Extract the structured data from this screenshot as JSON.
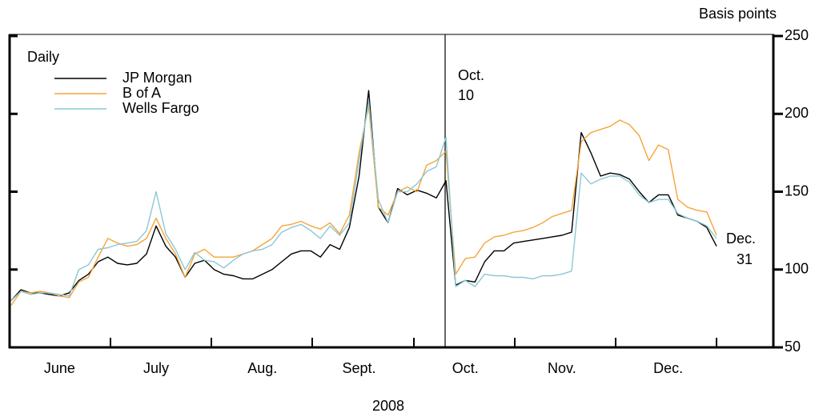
{
  "chart_data": {
    "type": "line",
    "y_axis_label": "Basis points",
    "x_axis_label": "2008",
    "legend_title": "Daily",
    "annotations": [
      {
        "text": [
          "Oct.",
          "10"
        ]
      },
      {
        "text": [
          "Dec.",
          "31"
        ]
      }
    ],
    "categories": [
      null,
      null,
      null,
      null,
      null,
      "June",
      null,
      null,
      null,
      null,
      null,
      null,
      null,
      null,
      null,
      "July",
      null,
      null,
      null,
      null,
      null,
      null,
      null,
      null,
      null,
      null,
      "Aug.",
      null,
      null,
      null,
      null,
      null,
      null,
      null,
      null,
      null,
      "Sept.",
      null,
      null,
      null,
      null,
      null,
      null,
      null,
      null,
      null,
      null,
      "Oct.",
      null,
      null,
      null,
      null,
      null,
      null,
      null,
      null,
      null,
      "Nov.",
      null,
      null,
      null,
      null,
      null,
      null,
      null,
      null,
      null,
      null,
      "Dec.",
      null,
      null,
      null,
      null,
      null
    ],
    "ylim": [
      50,
      250
    ],
    "yticks": [
      50,
      100,
      150,
      200,
      250
    ],
    "series": [
      {
        "name": "JP Morgan",
        "color": "#000000",
        "values": [
          80,
          87,
          85,
          85,
          84,
          83,
          85,
          93,
          97,
          105,
          108,
          104,
          103,
          104,
          110,
          128,
          115,
          108,
          95,
          104,
          106,
          100,
          97,
          96,
          94,
          94,
          97,
          100,
          105,
          110,
          112,
          112,
          108,
          116,
          113,
          127,
          160,
          215,
          140,
          130,
          152,
          148,
          151,
          149,
          146,
          157,
          90,
          93,
          92,
          105,
          112,
          112,
          117,
          118,
          119,
          120,
          121,
          122,
          124,
          188,
          175,
          160,
          162,
          161,
          158,
          150,
          143,
          148,
          148,
          135,
          133,
          131,
          127,
          115
        ]
      },
      {
        "name": "B of A",
        "color": "#f5a53a",
        "values": [
          77,
          86,
          85,
          86,
          85,
          83,
          82,
          92,
          95,
          108,
          120,
          117,
          115,
          116,
          120,
          133,
          120,
          110,
          95,
          110,
          113,
          108,
          108,
          108,
          110,
          112,
          116,
          120,
          128,
          129,
          131,
          128,
          126,
          130,
          123,
          135,
          175,
          205,
          140,
          135,
          150,
          153,
          150,
          167,
          170,
          176,
          97,
          107,
          108,
          117,
          121,
          122,
          124,
          125,
          127,
          130,
          134,
          136,
          138,
          182,
          188,
          190,
          192,
          196,
          193,
          186,
          170,
          180,
          177,
          145,
          140,
          138,
          137,
          122
        ]
      },
      {
        "name": "Wells Fargo",
        "color": "#8cc8d6",
        "values": [
          80,
          86,
          84,
          85,
          85,
          84,
          83,
          100,
          103,
          113,
          114,
          116,
          117,
          118,
          125,
          150,
          123,
          113,
          100,
          111,
          106,
          105,
          101,
          106,
          110,
          112,
          113,
          116,
          124,
          127,
          129,
          125,
          120,
          128,
          122,
          130,
          170,
          208,
          145,
          130,
          150,
          150,
          155,
          163,
          166,
          185,
          89,
          93,
          89,
          97,
          96,
          96,
          95,
          95,
          94,
          96,
          96,
          97,
          99,
          162,
          155,
          158,
          160,
          160,
          156,
          148,
          143,
          145,
          145,
          136,
          133,
          131,
          128,
          120
        ]
      }
    ]
  }
}
